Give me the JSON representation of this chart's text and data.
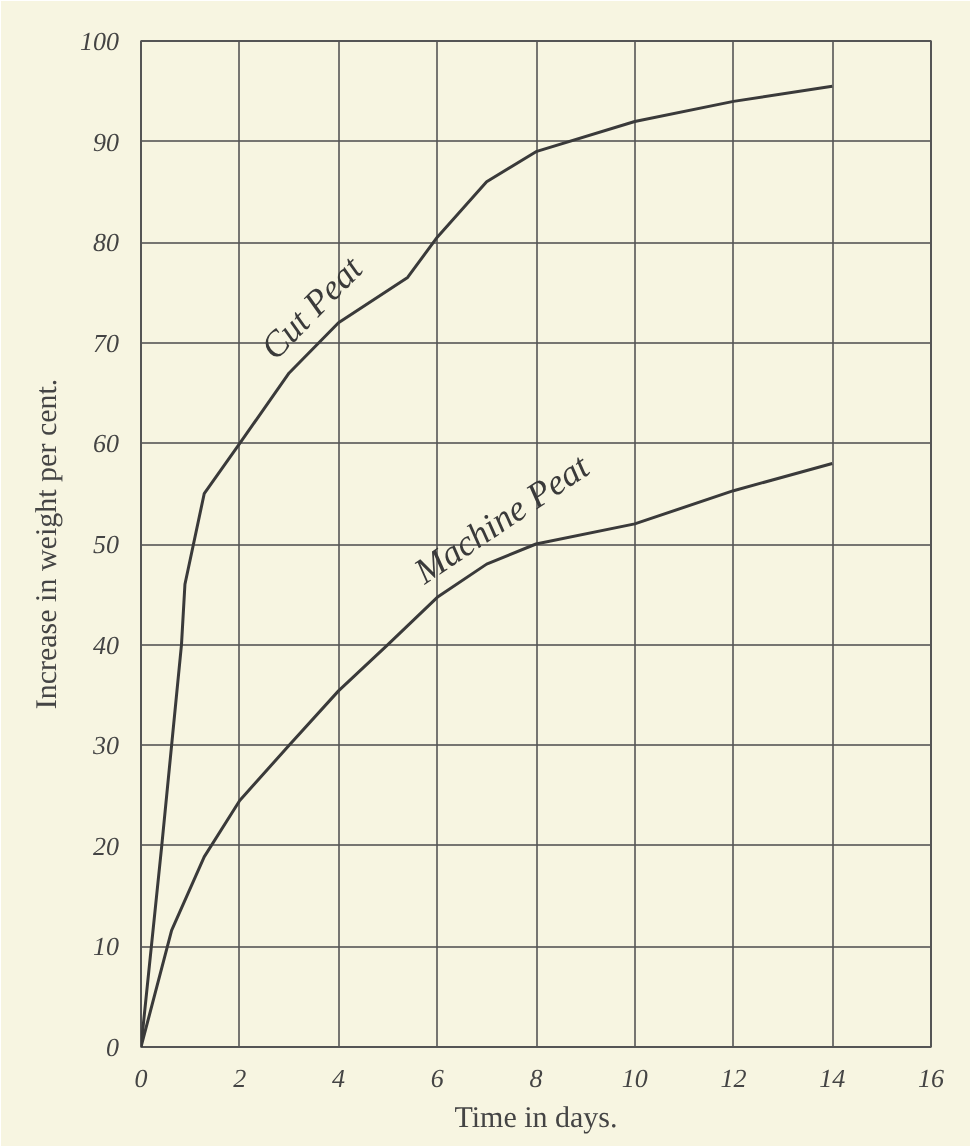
{
  "chart_data": {
    "type": "line",
    "xlabel": "Time in days.",
    "ylabel": "Increase in weight per cent.",
    "xlim": [
      0,
      16
    ],
    "ylim": [
      0,
      100
    ],
    "xticks": [
      0,
      2,
      4,
      6,
      8,
      10,
      12,
      14,
      16
    ],
    "yticks": [
      0,
      10,
      20,
      30,
      40,
      50,
      60,
      70,
      80,
      90,
      100
    ],
    "grid": true,
    "marker": "none",
    "line_style": "solid",
    "series": [
      {
        "name": "Cut Peat",
        "color": "#3a3a3a",
        "x": [
          0,
          0.42,
          0.82,
          0.89,
          1.28,
          2,
          3,
          4,
          5.4,
          6,
          7,
          8,
          10,
          12,
          14
        ],
        "values": [
          0,
          20,
          40,
          46,
          55,
          60,
          67,
          72,
          76.5,
          80.5,
          86,
          89,
          92,
          94,
          95.5
        ]
      },
      {
        "name": "Machine Peat",
        "color": "#3a3a3a",
        "x": [
          0,
          0.62,
          1.28,
          2,
          3,
          4,
          5,
          6,
          7,
          8,
          10,
          12,
          14
        ],
        "values": [
          0,
          11.6,
          18.9,
          24.5,
          30,
          35.4,
          40,
          44.7,
          48,
          50,
          52,
          55.3,
          58
        ]
      }
    ]
  }
}
